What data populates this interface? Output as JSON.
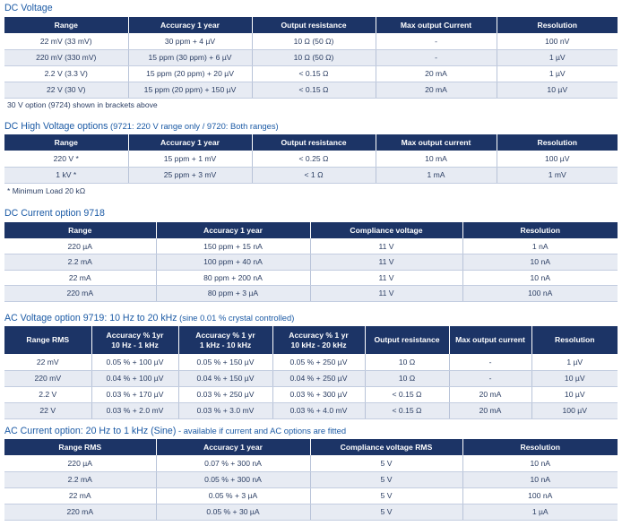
{
  "dc_voltage": {
    "title": "DC Voltage",
    "headers": [
      "Range",
      "Accuracy 1 year",
      "Output resistance",
      "Max output Current",
      "Resolution"
    ],
    "rows": [
      [
        "22 mV (33 mV)",
        "30 ppm + 4 µV",
        "10 Ω (50 Ω)",
        "-",
        "100 nV"
      ],
      [
        "220 mV (330 mV)",
        "15 ppm (30 ppm) + 6 µV",
        "10 Ω (50 Ω)",
        "-",
        "1 µV"
      ],
      [
        "2.2 V (3.3 V)",
        "15 ppm (20 ppm) + 20 µV",
        "< 0.15 Ω",
        "20 mA",
        "1 µV"
      ],
      [
        "22 V (30 V)",
        "15 ppm (20 ppm) + 150 µV",
        "< 0.15 Ω",
        "20 mA",
        "10 µV"
      ]
    ],
    "note": "30 V option (9724) shown in brackets above"
  },
  "dc_high_voltage": {
    "title": "DC High Voltage options",
    "title_detail": " (9721: 220 V range only  /  9720: Both ranges)",
    "headers": [
      "Range",
      "Accuracy 1 year",
      "Output resistance",
      "Max output current",
      "Resolution"
    ],
    "rows": [
      [
        "220 V *",
        "15 ppm + 1 mV",
        "< 0.25 Ω",
        "10 mA",
        "100 µV"
      ],
      [
        "1 kV *",
        "25 ppm + 3 mV",
        "< 1 Ω",
        "1 mA",
        "1 mV"
      ]
    ],
    "note": "* Minimum Load 20 kΩ"
  },
  "dc_current": {
    "title": "DC Current option 9718",
    "headers": [
      "Range",
      "Accuracy 1 year",
      "Compliance voltage",
      "Resolution"
    ],
    "rows": [
      [
        "220 µA",
        "150 ppm + 15 nA",
        "11 V",
        "1 nA"
      ],
      [
        "2.2 mA",
        "100 ppm + 40 nA",
        "11 V",
        "10 nA"
      ],
      [
        "22 mA",
        "80 ppm + 200 nA",
        "11 V",
        "10 nA"
      ],
      [
        "220 mA",
        "80 ppm + 3 µA",
        "11 V",
        "100 nA"
      ]
    ]
  },
  "ac_voltage": {
    "title": "AC Voltage option 9719: 10 Hz to 20 kHz",
    "title_detail": " (sine 0.01 % crystal controlled)",
    "headers": [
      [
        "Range RMS"
      ],
      [
        "Accuracy % 1yr",
        "10 Hz - 1 kHz"
      ],
      [
        "Accuracy % 1 yr",
        "1 kHz - 10 kHz"
      ],
      [
        "Accuracy % 1 yr",
        "10 kHz - 20 kHz"
      ],
      [
        "Output resistance"
      ],
      [
        "Max output current"
      ],
      [
        "Resolution"
      ]
    ],
    "rows": [
      [
        "22 mV",
        "0.05 % + 100 µV",
        "0.05 % + 150 µV",
        "0.05 % + 250 µV",
        "10 Ω",
        "-",
        "1 µV"
      ],
      [
        "220 mV",
        "0.04 % + 100 µV",
        "0.04 % + 150 µV",
        "0.04 % + 250 µV",
        "10 Ω",
        "-",
        "10 µV"
      ],
      [
        "2.2 V",
        "0.03 % + 170 µV",
        "0.03 % + 250 µV",
        "0.03 % + 300 µV",
        "< 0.15 Ω",
        "20 mA",
        "10 µV"
      ],
      [
        "22 V",
        "0.03 % + 2.0 mV",
        "0.03 % + 3.0 mV",
        "0.03 % + 4.0 mV",
        "< 0.15 Ω",
        "20 mA",
        "100 µV"
      ]
    ]
  },
  "ac_current": {
    "title": "AC Current option: 20 Hz to 1 kHz (Sine)",
    "title_detail": " - available if current and AC options are fitted",
    "headers": [
      "Range RMS",
      "Accuracy 1 year",
      "Compliance voltage RMS",
      "Resolution"
    ],
    "rows": [
      [
        "220 µA",
        "0.07 % + 300 nA",
        "5 V",
        "10 nA"
      ],
      [
        "2.2 mA",
        "0.05 % + 300 nA",
        "5 V",
        "10 nA"
      ],
      [
        "22 mA",
        "0.05 % + 3 µA",
        "5 V",
        "100 nA"
      ],
      [
        "220 mA",
        "0.05 % + 30 µA",
        "5 V",
        "1 µA"
      ]
    ]
  }
}
